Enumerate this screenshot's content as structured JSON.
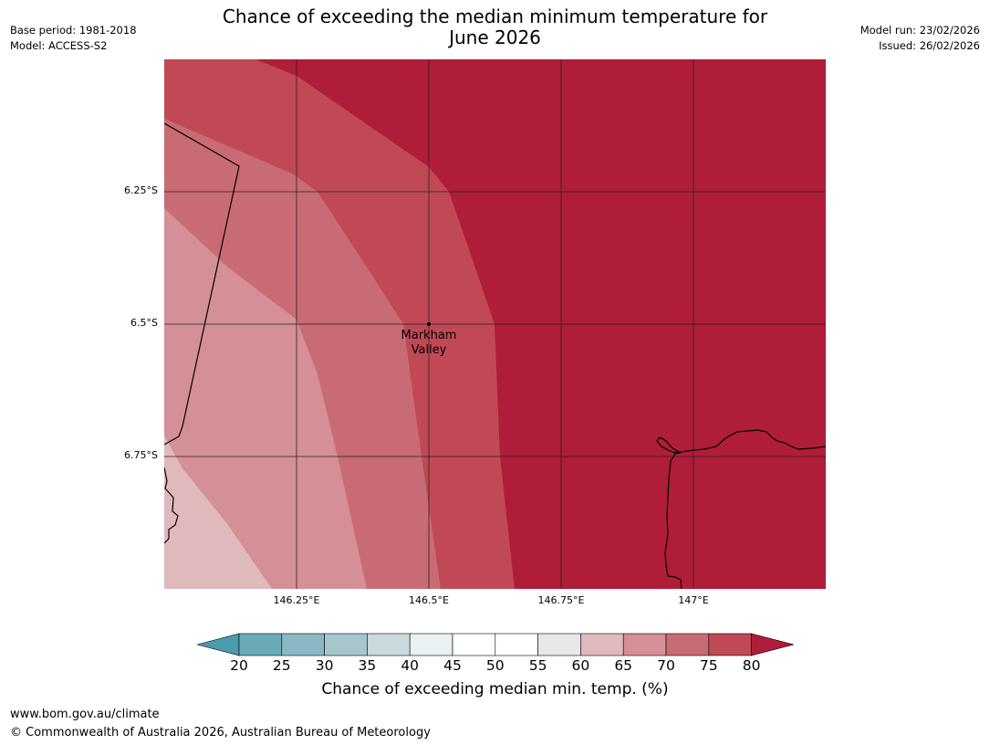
{
  "title": {
    "line1": "Chance of exceeding the median minimum temperature for",
    "line2": "June 2026"
  },
  "meta": {
    "base_period": "Base period: 1981-2018",
    "model": "Model: ACCESS-S2",
    "model_run": "Model run: 23/02/2026",
    "issued": "Issued: 26/02/2026"
  },
  "map": {
    "lat_labels": [
      "6.25°S",
      "6.5°S",
      "6.75°S"
    ],
    "lon_labels": [
      "146.25°E",
      "146.5°E",
      "146.75°E",
      "147°E"
    ],
    "place": {
      "line1": "Markham",
      "line2": "Valley"
    },
    "colors": {
      "c60_65": "#e0b9bd",
      "c65_70": "#d58f96",
      "c70_75": "#c96b74",
      "c75_80": "#c04955",
      "c80": "#b01d38"
    }
  },
  "colorbar": {
    "ticks": [
      "20",
      "25",
      "30",
      "35",
      "40",
      "45",
      "50",
      "55",
      "60",
      "65",
      "70",
      "75",
      "80"
    ],
    "colors": [
      "#4a9bab",
      "#6aaab8",
      "#8ab7c4",
      "#a7c6cc",
      "#c8dadd",
      "#e9f1f3",
      "#ffffff",
      "#ffffff",
      "#e8e8e8",
      "#e0b9bd",
      "#d58f96",
      "#c96b74",
      "#c04955",
      "#b01d38"
    ],
    "label": "Chance of exceeding median min. temp. (%)"
  },
  "footer": {
    "url": "www.bom.gov.au/climate",
    "copyright": "© Commonwealth of Australia 2026, Australian Bureau of Meteorology"
  }
}
